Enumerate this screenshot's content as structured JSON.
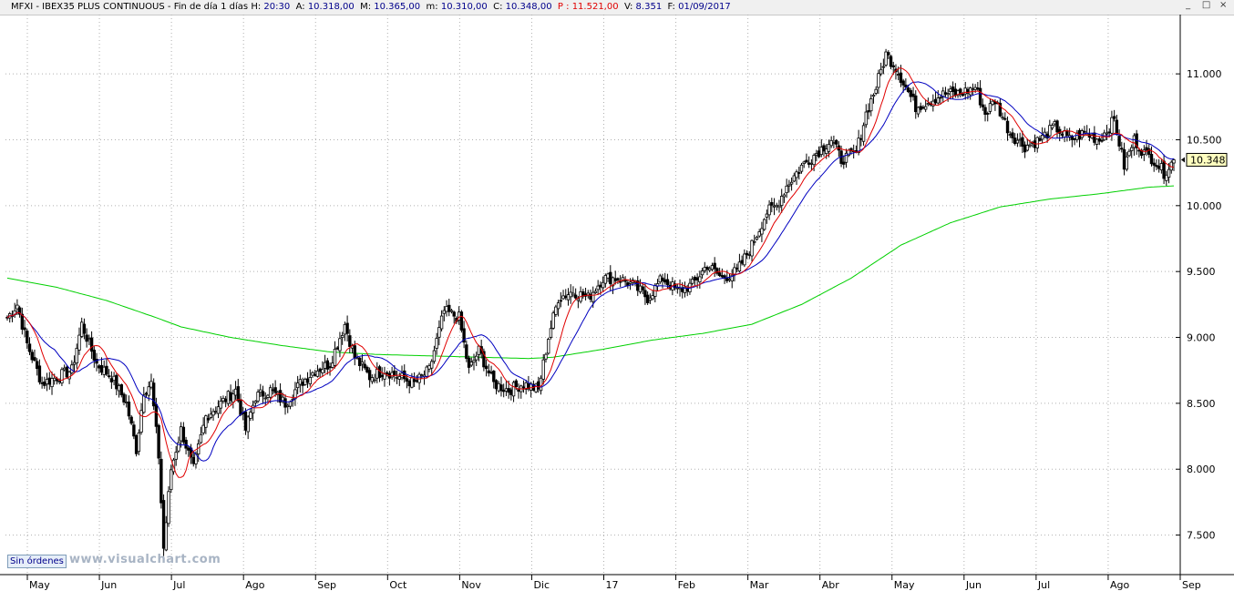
{
  "header": {
    "symbol": "MFXI",
    "name": "IBEX35 PLUS CONTINUOUS",
    "period": "Fin de día 1 días",
    "h_label": "H:",
    "h_value": "20:30",
    "a_label": "A:",
    "a_value": "10.318,00",
    "m_label": "M:",
    "m_value": "10.365,00",
    "mlow_label": "m:",
    "mlow_value": "10.310,00",
    "c_label": "C:",
    "c_value": "10.348,00",
    "p_label": "P :",
    "p_value": "11.521,00",
    "v_label": "V:",
    "v_value": "8.351",
    "f_label": "F:",
    "f_value": "01/09/2017"
  },
  "window_buttons": [
    "_",
    "□",
    "×"
  ],
  "badge": "Sin órdenes",
  "watermark": "www.visualchart.com",
  "last_price_label": "10.348",
  "colors": {
    "candle": "#000000",
    "ma_fast": "#e00000",
    "ma_mid": "#0000c0",
    "ma_slow": "#00d000",
    "grid": "#b0b0b0",
    "last_price_box": "#ffffc0"
  },
  "chart_data": {
    "type": "candlestick",
    "y_ticks": [
      7500,
      8000,
      8500,
      9000,
      9500,
      10000,
      10500,
      11000
    ],
    "y_tick_labels": [
      "7.500",
      "8.000",
      "8.500",
      "9.000",
      "9.500",
      "10.000",
      "10.500",
      "11.000"
    ],
    "ylim": [
      7200,
      11450
    ],
    "x_labels": [
      "May",
      "Jun",
      "Jul",
      "Ago",
      "Sep",
      "Oct",
      "Nov",
      "Dic",
      "17",
      "Feb",
      "Mar",
      "Abr",
      "May",
      "Jun",
      "Jul",
      "Ago",
      "Sep"
    ],
    "close_anchors": [
      [
        0,
        9150
      ],
      [
        4,
        9250
      ],
      [
        8,
        8950
      ],
      [
        14,
        8650
      ],
      [
        20,
        8700
      ],
      [
        26,
        8750
      ],
      [
        30,
        9100
      ],
      [
        36,
        8800
      ],
      [
        42,
        8700
      ],
      [
        48,
        8500
      ],
      [
        52,
        8150
      ],
      [
        55,
        8600
      ],
      [
        58,
        8650
      ],
      [
        61,
        8100
      ],
      [
        63,
        7400
      ],
      [
        66,
        8000
      ],
      [
        70,
        8300
      ],
      [
        75,
        8000
      ],
      [
        80,
        8400
      ],
      [
        86,
        8500
      ],
      [
        92,
        8600
      ],
      [
        96,
        8300
      ],
      [
        100,
        8550
      ],
      [
        106,
        8600
      ],
      [
        112,
        8500
      ],
      [
        118,
        8650
      ],
      [
        124,
        8750
      ],
      [
        130,
        8800
      ],
      [
        136,
        9100
      ],
      [
        140,
        8850
      ],
      [
        146,
        8700
      ],
      [
        152,
        8750
      ],
      [
        158,
        8700
      ],
      [
        164,
        8650
      ],
      [
        170,
        8750
      ],
      [
        176,
        9200
      ],
      [
        182,
        9150
      ],
      [
        186,
        8750
      ],
      [
        190,
        8900
      ],
      [
        196,
        8650
      ],
      [
        202,
        8600
      ],
      [
        208,
        8650
      ],
      [
        214,
        8600
      ],
      [
        218,
        9000
      ],
      [
        222,
        9300
      ],
      [
        228,
        9350
      ],
      [
        234,
        9300
      ],
      [
        240,
        9450
      ],
      [
        246,
        9450
      ],
      [
        252,
        9400
      ],
      [
        258,
        9300
      ],
      [
        264,
        9450
      ],
      [
        270,
        9350
      ],
      [
        276,
        9400
      ],
      [
        282,
        9550
      ],
      [
        288,
        9450
      ],
      [
        294,
        9500
      ],
      [
        300,
        9700
      ],
      [
        306,
        9950
      ],
      [
        310,
        10000
      ],
      [
        314,
        10150
      ],
      [
        320,
        10300
      ],
      [
        326,
        10400
      ],
      [
        332,
        10500
      ],
      [
        336,
        10350
      ],
      [
        342,
        10400
      ],
      [
        346,
        10700
      ],
      [
        350,
        10900
      ],
      [
        354,
        11150
      ],
      [
        358,
        11050
      ],
      [
        362,
        10900
      ],
      [
        366,
        10750
      ],
      [
        372,
        10800
      ],
      [
        378,
        10850
      ],
      [
        384,
        10850
      ],
      [
        390,
        10900
      ],
      [
        394,
        10700
      ],
      [
        398,
        10800
      ],
      [
        404,
        10550
      ],
      [
        410,
        10450
      ],
      [
        416,
        10500
      ],
      [
        422,
        10600
      ],
      [
        428,
        10500
      ],
      [
        434,
        10550
      ],
      [
        440,
        10500
      ],
      [
        446,
        10650
      ],
      [
        450,
        10300
      ],
      [
        454,
        10500
      ],
      [
        458,
        10400
      ],
      [
        462,
        10350
      ],
      [
        466,
        10250
      ],
      [
        470,
        10348
      ]
    ],
    "sma_fast_period": 10,
    "sma_mid_period": 20,
    "slow_ma_anchors": [
      [
        0,
        9450
      ],
      [
        20,
        9380
      ],
      [
        40,
        9280
      ],
      [
        60,
        9150
      ],
      [
        70,
        9080
      ],
      [
        90,
        9000
      ],
      [
        110,
        8940
      ],
      [
        130,
        8890
      ],
      [
        150,
        8870
      ],
      [
        170,
        8860
      ],
      [
        190,
        8850
      ],
      [
        210,
        8840
      ],
      [
        220,
        8850
      ],
      [
        240,
        8910
      ],
      [
        260,
        8980
      ],
      [
        280,
        9030
      ],
      [
        300,
        9100
      ],
      [
        320,
        9250
      ],
      [
        340,
        9450
      ],
      [
        360,
        9700
      ],
      [
        380,
        9870
      ],
      [
        400,
        9990
      ],
      [
        420,
        10050
      ],
      [
        440,
        10090
      ],
      [
        460,
        10140
      ],
      [
        470,
        10150
      ]
    ]
  }
}
